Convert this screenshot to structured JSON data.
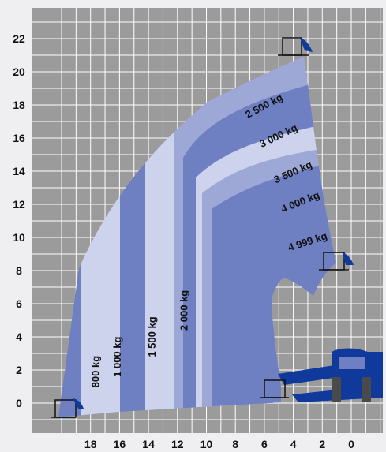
{
  "chart_data": {
    "type": "load-chart",
    "title": "",
    "xlabel": "",
    "ylabel": "",
    "x_ticks": [
      "18",
      "16",
      "14",
      "12",
      "10",
      "8",
      "6",
      "4",
      "2",
      "0"
    ],
    "y_ticks": [
      "0",
      "2",
      "4",
      "6",
      "8",
      "10",
      "12",
      "14",
      "16",
      "18",
      "20",
      "22"
    ],
    "xlim": [
      20,
      -2
    ],
    "ylim": [
      -1,
      24
    ],
    "grid": true,
    "zones": [
      {
        "label": "800 kg",
        "x": 17.6,
        "y": 1.9,
        "rotate": -90
      },
      {
        "label": "1 000 kg",
        "x": 16.1,
        "y": 2.8,
        "rotate": -90
      },
      {
        "label": "1 500 kg",
        "x": 13.7,
        "y": 4.0,
        "rotate": -90
      },
      {
        "label": "2 000 kg",
        "x": 11.5,
        "y": 5.6,
        "rotate": -90
      },
      {
        "label": "2 500 kg",
        "x": 6.0,
        "y": 17.9,
        "rotate": -28
      },
      {
        "label": "3 000 kg",
        "x": 5.0,
        "y": 16.1,
        "rotate": -26
      },
      {
        "label": "3 500 kg",
        "x": 4.0,
        "y": 13.9,
        "rotate": -24
      },
      {
        "label": "4 000 kg",
        "x": 3.5,
        "y": 12.1,
        "rotate": -22
      },
      {
        "label": "4 999 kg",
        "x": 3.0,
        "y": 9.7,
        "rotate": -18
      }
    ],
    "colors": {
      "background": "#efeff1",
      "plot_area": "#9b9b9b",
      "grid": "#ffffff",
      "band_dark": "#6e7fc2",
      "band_mid": "#9da8d6",
      "band_light": "#cdd3ec",
      "machine": "#0f3a9c"
    }
  }
}
